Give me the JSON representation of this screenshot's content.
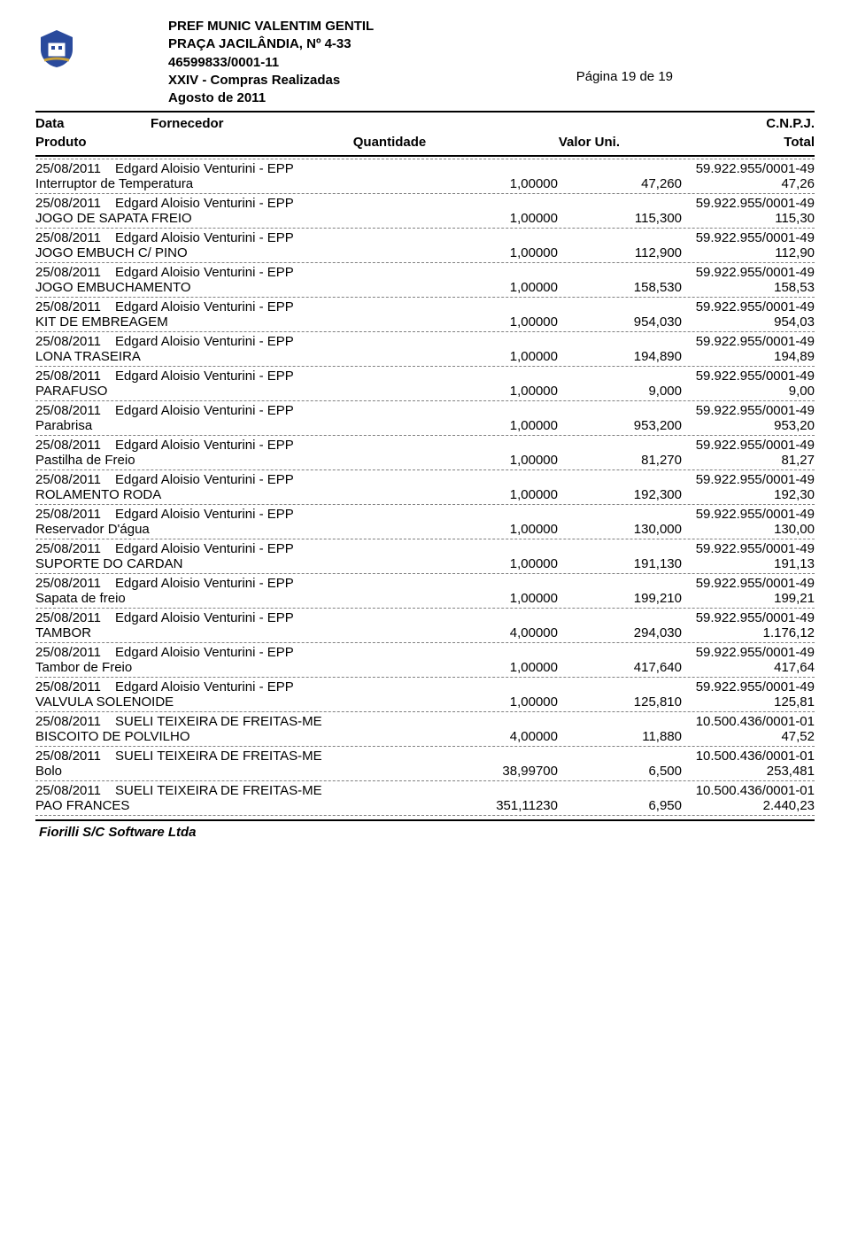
{
  "header": {
    "org": "PREF MUNIC VALENTIM GENTIL",
    "address": "PRAÇA JACILÂNDIA, Nº 4-33",
    "reg": "46599833/0001-11",
    "title": "XXIV - Compras Realizadas",
    "period": "Agosto de 2011",
    "page": "Página 19 de 19"
  },
  "cols": {
    "data": "Data",
    "fornecedor": "Fornecedor",
    "cnpj": "C.N.P.J.",
    "produto": "Produto",
    "quantidade": "Quantidade",
    "valor_uni": "Valor Uni.",
    "total": "Total"
  },
  "footer": "Fiorilli S/C Software Ltda",
  "items": [
    {
      "date": "25/08/2011",
      "supplier": "Edgard Aloisio Venturini - EPP",
      "cnpj": "59.922.955/0001-49",
      "product": "Interruptor de Temperatura",
      "qty": "1,00000",
      "val": "47,260",
      "total": "47,26"
    },
    {
      "date": "25/08/2011",
      "supplier": "Edgard Aloisio Venturini - EPP",
      "cnpj": "59.922.955/0001-49",
      "product": "JOGO DE SAPATA FREIO",
      "qty": "1,00000",
      "val": "115,300",
      "total": "115,30"
    },
    {
      "date": "25/08/2011",
      "supplier": "Edgard Aloisio Venturini - EPP",
      "cnpj": "59.922.955/0001-49",
      "product": "JOGO EMBUCH C/ PINO",
      "qty": "1,00000",
      "val": "112,900",
      "total": "112,90"
    },
    {
      "date": "25/08/2011",
      "supplier": "Edgard Aloisio Venturini - EPP",
      "cnpj": "59.922.955/0001-49",
      "product": "JOGO EMBUCHAMENTO",
      "qty": "1,00000",
      "val": "158,530",
      "total": "158,53"
    },
    {
      "date": "25/08/2011",
      "supplier": "Edgard Aloisio Venturini - EPP",
      "cnpj": "59.922.955/0001-49",
      "product": "KIT DE EMBREAGEM",
      "qty": "1,00000",
      "val": "954,030",
      "total": "954,03"
    },
    {
      "date": "25/08/2011",
      "supplier": "Edgard Aloisio Venturini - EPP",
      "cnpj": "59.922.955/0001-49",
      "product": "LONA TRASEIRA",
      "qty": "1,00000",
      "val": "194,890",
      "total": "194,89"
    },
    {
      "date": "25/08/2011",
      "supplier": "Edgard Aloisio Venturini - EPP",
      "cnpj": "59.922.955/0001-49",
      "product": "PARAFUSO",
      "qty": "1,00000",
      "val": "9,000",
      "total": "9,00"
    },
    {
      "date": "25/08/2011",
      "supplier": "Edgard Aloisio Venturini - EPP",
      "cnpj": "59.922.955/0001-49",
      "product": "Parabrisa",
      "qty": "1,00000",
      "val": "953,200",
      "total": "953,20"
    },
    {
      "date": "25/08/2011",
      "supplier": "Edgard Aloisio Venturini - EPP",
      "cnpj": "59.922.955/0001-49",
      "product": "Pastilha de Freio",
      "qty": "1,00000",
      "val": "81,270",
      "total": "81,27"
    },
    {
      "date": "25/08/2011",
      "supplier": "Edgard Aloisio Venturini - EPP",
      "cnpj": "59.922.955/0001-49",
      "product": "ROLAMENTO RODA",
      "qty": "1,00000",
      "val": "192,300",
      "total": "192,30"
    },
    {
      "date": "25/08/2011",
      "supplier": "Edgard Aloisio Venturini - EPP",
      "cnpj": "59.922.955/0001-49",
      "product": "Reservador D'água",
      "qty": "1,00000",
      "val": "130,000",
      "total": "130,00"
    },
    {
      "date": "25/08/2011",
      "supplier": "Edgard Aloisio Venturini - EPP",
      "cnpj": "59.922.955/0001-49",
      "product": "SUPORTE DO CARDAN",
      "qty": "1,00000",
      "val": "191,130",
      "total": "191,13"
    },
    {
      "date": "25/08/2011",
      "supplier": "Edgard Aloisio Venturini - EPP",
      "cnpj": "59.922.955/0001-49",
      "product": "Sapata de freio",
      "qty": "1,00000",
      "val": "199,210",
      "total": "199,21"
    },
    {
      "date": "25/08/2011",
      "supplier": "Edgard Aloisio Venturini - EPP",
      "cnpj": "59.922.955/0001-49",
      "product": "TAMBOR",
      "qty": "4,00000",
      "val": "294,030",
      "total": "1.176,12"
    },
    {
      "date": "25/08/2011",
      "supplier": "Edgard Aloisio Venturini - EPP",
      "cnpj": "59.922.955/0001-49",
      "product": "Tambor de Freio",
      "qty": "1,00000",
      "val": "417,640",
      "total": "417,64"
    },
    {
      "date": "25/08/2011",
      "supplier": "Edgard Aloisio Venturini - EPP",
      "cnpj": "59.922.955/0001-49",
      "product": "VALVULA SOLENOIDE",
      "qty": "1,00000",
      "val": "125,810",
      "total": "125,81"
    },
    {
      "date": "25/08/2011",
      "supplier": "SUELI TEIXEIRA DE FREITAS-ME",
      "cnpj": "10.500.436/0001-01",
      "product": "BISCOITO DE POLVILHO",
      "qty": "4,00000",
      "val": "11,880",
      "total": "47,52"
    },
    {
      "date": "25/08/2011",
      "supplier": "SUELI TEIXEIRA DE FREITAS-ME",
      "cnpj": "10.500.436/0001-01",
      "product": "Bolo",
      "qty": "38,99700",
      "val": "6,500",
      "total": "253,481"
    },
    {
      "date": "25/08/2011",
      "supplier": "SUELI TEIXEIRA DE FREITAS-ME",
      "cnpj": "10.500.436/0001-01",
      "product": "PAO FRANCES",
      "qty": "351,11230",
      "val": "6,950",
      "total": "2.440,23"
    }
  ],
  "style": {
    "bg": "#ffffff",
    "text": "#000000",
    "rule": "#000000",
    "dash": "#808080",
    "font_family": "Arial",
    "body_fontsize": 15,
    "header_fontsize": 15,
    "logo_colors": {
      "blue": "#2a4a9c",
      "gold": "#c9a23a",
      "white": "#ffffff"
    }
  }
}
